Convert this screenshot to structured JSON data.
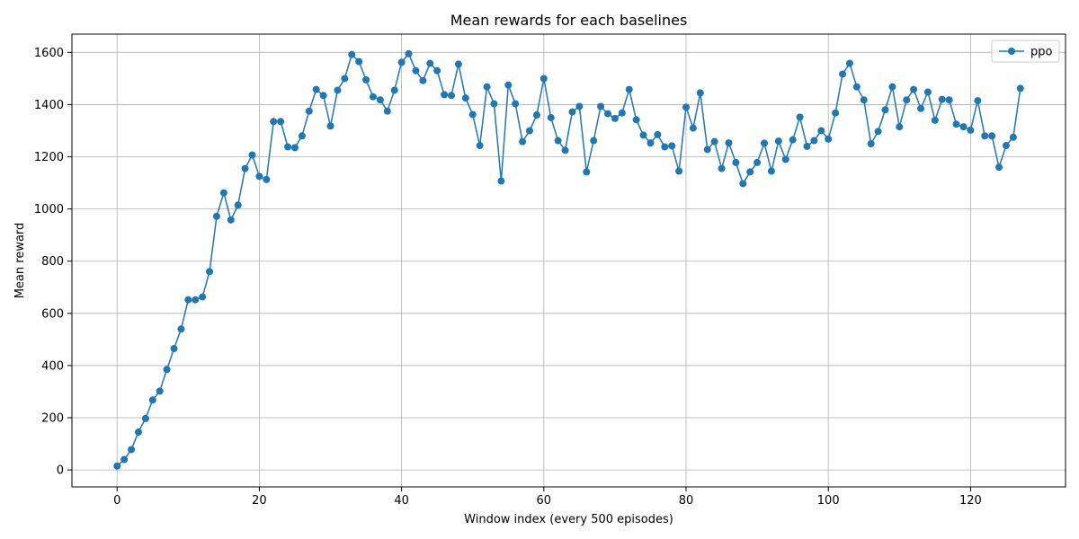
{
  "chart_data": {
    "type": "line",
    "title": "Mean rewards for each baselines",
    "xlabel": "Window index (every 500 episodes)",
    "ylabel": "Mean reward",
    "xlim": [
      -6.35,
      133.35
    ],
    "ylim": [
      -65,
      1670
    ],
    "xticks": [
      0,
      20,
      40,
      60,
      80,
      100,
      120
    ],
    "yticks": [
      0,
      200,
      400,
      600,
      800,
      1000,
      1200,
      1400,
      1600
    ],
    "grid": true,
    "legend_position": "top-right",
    "colors": {
      "series": "#1f77b4",
      "grid": "#b0b0b0",
      "axes": "#000000"
    },
    "series": [
      {
        "name": "ppo",
        "marker": "circle",
        "values": [
          15,
          40,
          78,
          145,
          197,
          268,
          302,
          385,
          465,
          540,
          652,
          652,
          663,
          760,
          972,
          1062,
          958,
          1015,
          1155,
          1207,
          1125,
          1113,
          1335,
          1335,
          1238,
          1235,
          1280,
          1375,
          1458,
          1435,
          1318,
          1455,
          1500,
          1592,
          1565,
          1495,
          1430,
          1418,
          1375,
          1455,
          1562,
          1595,
          1530,
          1492,
          1558,
          1530,
          1438,
          1435,
          1555,
          1425,
          1362,
          1243,
          1468,
          1403,
          1107,
          1475,
          1403,
          1258,
          1300,
          1360,
          1500,
          1350,
          1262,
          1225,
          1372,
          1393,
          1142,
          1262,
          1393,
          1365,
          1347,
          1368,
          1458,
          1342,
          1283,
          1253,
          1285,
          1238,
          1242,
          1145,
          1390,
          1310,
          1445,
          1228,
          1258,
          1155,
          1253,
          1178,
          1097,
          1142,
          1178,
          1252,
          1145,
          1260,
          1190,
          1265,
          1352,
          1240,
          1262,
          1300,
          1268,
          1368,
          1517,
          1558,
          1468,
          1418,
          1250,
          1297,
          1380,
          1468,
          1315,
          1418,
          1458,
          1385,
          1448,
          1340,
          1420,
          1418,
          1325,
          1315,
          1302,
          1415,
          1280,
          1280,
          1160,
          1243,
          1275,
          1462
        ]
      }
    ]
  }
}
